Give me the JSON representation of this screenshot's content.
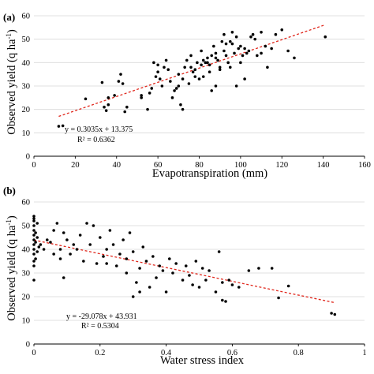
{
  "chart_data": [
    {
      "type": "scatter",
      "panel_label": "(a)",
      "xlabel": "Evapotranspiration (mm)",
      "ylabel_main": "Observed yield (q ha",
      "ylabel_sup": "-1",
      "ylabel_close": ")",
      "xlim": [
        0,
        160
      ],
      "ylim": [
        0,
        60
      ],
      "xticks": [
        0,
        20,
        40,
        60,
        80,
        100,
        120,
        140,
        160
      ],
      "yticks": [
        0,
        10,
        20,
        30,
        40,
        50,
        60
      ],
      "equation": "y = 0.3035x + 13.375",
      "r2": "R² = 0.6362",
      "trend": {
        "slope": 0.3035,
        "intercept": 13.375,
        "x_range": [
          12,
          141
        ],
        "color": "#e0261b"
      },
      "points": [
        [
          12,
          12.8
        ],
        [
          14,
          13
        ],
        [
          25,
          24.5
        ],
        [
          33,
          31.5
        ],
        [
          34,
          21
        ],
        [
          35,
          19.5
        ],
        [
          36,
          25
        ],
        [
          36,
          22
        ],
        [
          39,
          26
        ],
        [
          41,
          32
        ],
        [
          42,
          35
        ],
        [
          43,
          31
        ],
        [
          44,
          19
        ],
        [
          45,
          21
        ],
        [
          52,
          25
        ],
        [
          52,
          26
        ],
        [
          55,
          20
        ],
        [
          56,
          27
        ],
        [
          57,
          29
        ],
        [
          58,
          40
        ],
        [
          59,
          34
        ],
        [
          60,
          36
        ],
        [
          61,
          33
        ],
        [
          62,
          30
        ],
        [
          63,
          38
        ],
        [
          64,
          41
        ],
        [
          65,
          37
        ],
        [
          66,
          32
        ],
        [
          67,
          25
        ],
        [
          68,
          28
        ],
        [
          69,
          29
        ],
        [
          70,
          35
        ],
        [
          71,
          22
        ],
        [
          72,
          20
        ],
        [
          72,
          33
        ],
        [
          73,
          38
        ],
        [
          74,
          41
        ],
        [
          75,
          31
        ],
        [
          76,
          43
        ],
        [
          77,
          36
        ],
        [
          78,
          34
        ],
        [
          79,
          40
        ],
        [
          80,
          33
        ],
        [
          81,
          39
        ],
        [
          81,
          45
        ],
        [
          82,
          41
        ],
        [
          83,
          40
        ],
        [
          84,
          42
        ],
        [
          85,
          39
        ],
        [
          85,
          36
        ],
        [
          86,
          43
        ],
        [
          86,
          28
        ],
        [
          87,
          47
        ],
        [
          88,
          30
        ],
        [
          88,
          44
        ],
        [
          89,
          41
        ],
        [
          90,
          38
        ],
        [
          91,
          49
        ],
        [
          92,
          45
        ],
        [
          92,
          52
        ],
        [
          93,
          43
        ],
        [
          94,
          40
        ],
        [
          95,
          38
        ],
        [
          95,
          49
        ],
        [
          96,
          53
        ],
        [
          97,
          44
        ],
        [
          98,
          51
        ],
        [
          98,
          30
        ],
        [
          99,
          46
        ],
        [
          100,
          40
        ],
        [
          100,
          47
        ],
        [
          101,
          43
        ],
        [
          102,
          33
        ],
        [
          103,
          44
        ],
        [
          104,
          45
        ],
        [
          105,
          51
        ],
        [
          106,
          52
        ],
        [
          107,
          50
        ],
        [
          108,
          43
        ],
        [
          110,
          53
        ],
        [
          112,
          47
        ],
        [
          113,
          38
        ],
        [
          115,
          46
        ],
        [
          117,
          52
        ],
        [
          120,
          54
        ],
        [
          123,
          45
        ],
        [
          126,
          42
        ],
        [
          141,
          51
        ],
        [
          84,
          40
        ],
        [
          90,
          37
        ],
        [
          96,
          48
        ],
        [
          78,
          37
        ],
        [
          70,
          30
        ],
        [
          60,
          39
        ],
        [
          88,
          42
        ],
        [
          93,
          48
        ],
        [
          102,
          46
        ],
        [
          110,
          44
        ],
        [
          76,
          38
        ],
        [
          82,
          34
        ]
      ]
    },
    {
      "type": "scatter",
      "panel_label": "(b)",
      "xlabel": "Water stress index",
      "ylabel_main": "Observed yield (q ha",
      "ylabel_sup": "-1",
      "ylabel_close": ")",
      "xlim": [
        0,
        1
      ],
      "ylim": [
        0,
        60
      ],
      "xticks": [
        0,
        0.2,
        0.4,
        0.6,
        0.8,
        1
      ],
      "xtick_labels": [
        "0",
        "0.2",
        "0.4",
        "0.6",
        "0.8",
        "1"
      ],
      "yticks": [
        0,
        10,
        20,
        30,
        40,
        50,
        60
      ],
      "equation": "y = -29.078x + 43.931",
      "r2": "R² = 0.5304",
      "trend": {
        "slope": -29.078,
        "intercept": 43.931,
        "x_range": [
          0,
          0.91
        ],
        "color": "#e0261b"
      },
      "points": [
        [
          0,
          27
        ],
        [
          0,
          33
        ],
        [
          0,
          35
        ],
        [
          0,
          38
        ],
        [
          0,
          40
        ],
        [
          0,
          42
        ],
        [
          0,
          44
        ],
        [
          0,
          46
        ],
        [
          0,
          48
        ],
        [
          0,
          50
        ],
        [
          0,
          52
        ],
        [
          0,
          53
        ],
        [
          0,
          54
        ],
        [
          0.005,
          36
        ],
        [
          0.005,
          43
        ],
        [
          0.005,
          47
        ],
        [
          0.01,
          39
        ],
        [
          0.01,
          45
        ],
        [
          0.01,
          51
        ],
        [
          0.015,
          41
        ],
        [
          0.02,
          42
        ],
        [
          0.03,
          40
        ],
        [
          0.04,
          44
        ],
        [
          0.05,
          43
        ],
        [
          0.06,
          38
        ],
        [
          0.06,
          48
        ],
        [
          0.07,
          51
        ],
        [
          0.08,
          40
        ],
        [
          0.08,
          36
        ],
        [
          0.09,
          28
        ],
        [
          0.09,
          47
        ],
        [
          0.1,
          44
        ],
        [
          0.11,
          38
        ],
        [
          0.12,
          42
        ],
        [
          0.13,
          40
        ],
        [
          0.14,
          46
        ],
        [
          0.15,
          35
        ],
        [
          0.16,
          51
        ],
        [
          0.17,
          42
        ],
        [
          0.18,
          50
        ],
        [
          0.19,
          34
        ],
        [
          0.2,
          45
        ],
        [
          0.21,
          37
        ],
        [
          0.22,
          40
        ],
        [
          0.22,
          34
        ],
        [
          0.23,
          48
        ],
        [
          0.24,
          42
        ],
        [
          0.25,
          33
        ],
        [
          0.26,
          38
        ],
        [
          0.27,
          44
        ],
        [
          0.28,
          30
        ],
        [
          0.28,
          36
        ],
        [
          0.29,
          47
        ],
        [
          0.3,
          39
        ],
        [
          0.31,
          26
        ],
        [
          0.3,
          20
        ],
        [
          0.32,
          32
        ],
        [
          0.32,
          22
        ],
        [
          0.33,
          41
        ],
        [
          0.34,
          35
        ],
        [
          0.35,
          24
        ],
        [
          0.36,
          37
        ],
        [
          0.37,
          28
        ],
        [
          0.38,
          33
        ],
        [
          0.39,
          31
        ],
        [
          0.4,
          22
        ],
        [
          0.41,
          36
        ],
        [
          0.42,
          30
        ],
        [
          0.43,
          34
        ],
        [
          0.45,
          27
        ],
        [
          0.46,
          33
        ],
        [
          0.47,
          29
        ],
        [
          0.48,
          25
        ],
        [
          0.49,
          35
        ],
        [
          0.5,
          24
        ],
        [
          0.51,
          32
        ],
        [
          0.52,
          27
        ],
        [
          0.53,
          31
        ],
        [
          0.55,
          22
        ],
        [
          0.56,
          39
        ],
        [
          0.57,
          26
        ],
        [
          0.57,
          18.5
        ],
        [
          0.58,
          18
        ],
        [
          0.59,
          27
        ],
        [
          0.6,
          25
        ],
        [
          0.62,
          24
        ],
        [
          0.65,
          31
        ],
        [
          0.68,
          32
        ],
        [
          0.72,
          32
        ],
        [
          0.74,
          19.5
        ],
        [
          0.77,
          24.5
        ],
        [
          0.9,
          13
        ],
        [
          0.91,
          12.5
        ]
      ]
    }
  ]
}
